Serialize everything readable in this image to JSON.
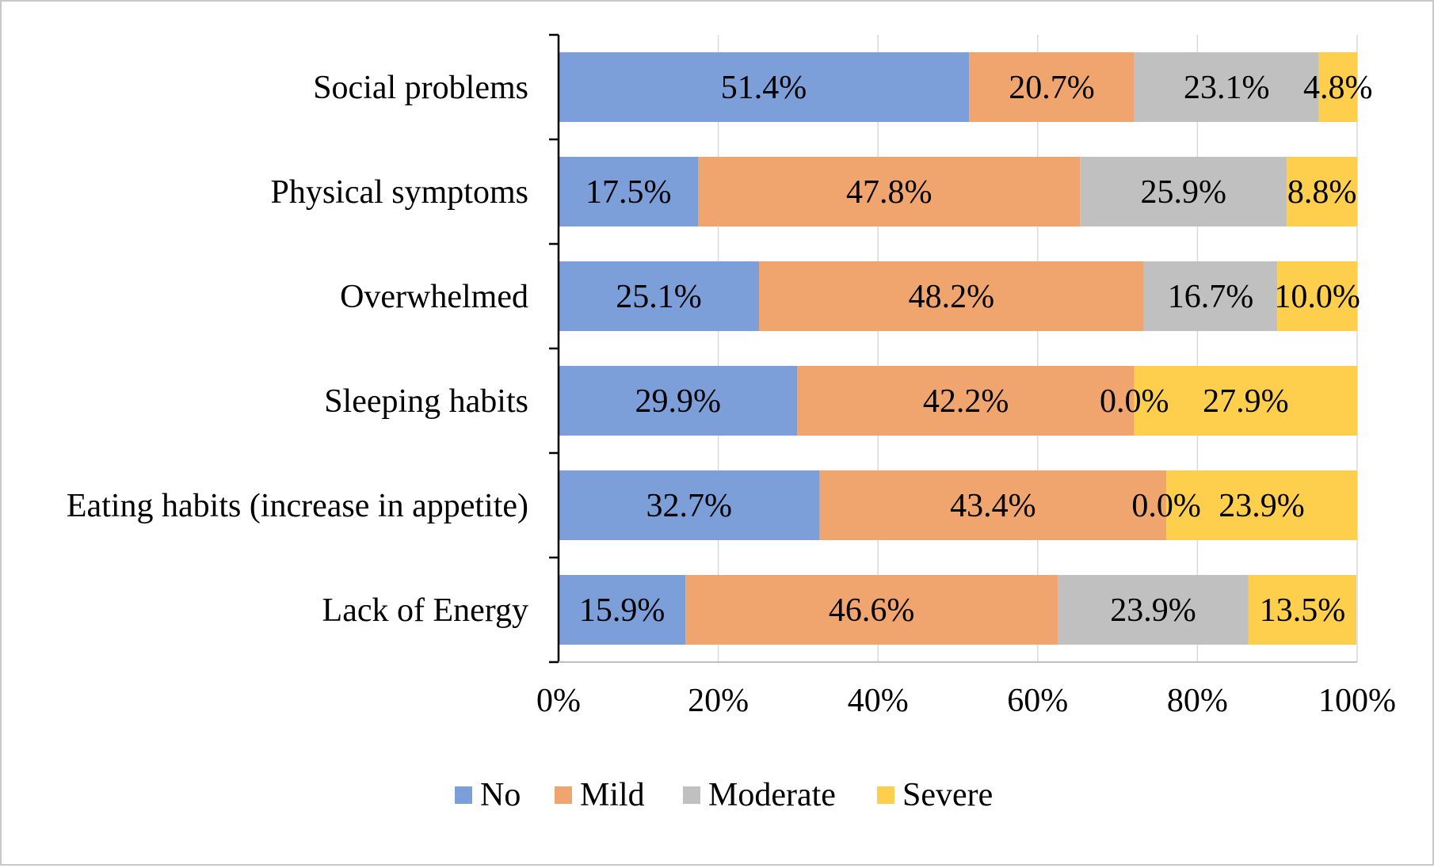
{
  "chart_data": {
    "type": "bar",
    "orientation": "horizontal",
    "stacked": true,
    "categories": [
      "Social problems",
      "Physical symptoms",
      "Overwhelmed",
      "Sleeping habits",
      "Eating habits (increase in appetite)",
      "Lack of Energy"
    ],
    "series": [
      {
        "name": "No",
        "color": "#7c9fd9",
        "values": [
          51.4,
          17.5,
          25.1,
          29.9,
          32.7,
          15.9
        ],
        "labels": [
          "51.4%",
          "17.5%",
          "25.1%",
          "29.9%",
          "32.7%",
          "15.9%"
        ]
      },
      {
        "name": "Mild",
        "color": "#f0a56e",
        "values": [
          20.7,
          47.8,
          48.2,
          42.2,
          43.4,
          46.6
        ],
        "labels": [
          "20.7%",
          "47.8%",
          "48.2%",
          "42.2%",
          "43.4%",
          "46.6%"
        ]
      },
      {
        "name": "Moderate",
        "color": "#c0c0c0",
        "values": [
          23.1,
          25.9,
          16.7,
          0.0,
          0.0,
          23.9
        ],
        "labels": [
          "23.1%",
          "25.9%",
          "16.7%",
          "0.0%",
          "0.0%",
          "23.9%"
        ]
      },
      {
        "name": "Severe",
        "color": "#fdcf4c",
        "values": [
          4.8,
          8.8,
          10.0,
          27.9,
          23.9,
          13.5
        ],
        "labels": [
          "4.8%",
          "8.8%",
          "10.0%",
          "27.9%",
          "23.9%",
          "13.5%"
        ]
      }
    ],
    "x_ticks": [
      "0%",
      "20%",
      "40%",
      "60%",
      "80%",
      "100%"
    ],
    "xlim": [
      0,
      100
    ],
    "grid": "vertical",
    "legend_position": "bottom"
  }
}
